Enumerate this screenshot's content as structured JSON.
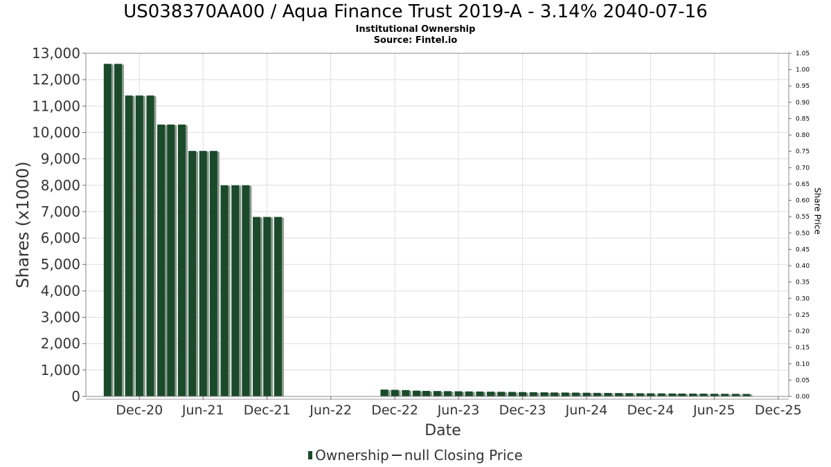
{
  "header": {
    "title": "US038370AA00 / Aqua Finance Trust 2019-A - 3.14% 2040-07-16",
    "subtitle1": "Institutional Ownership",
    "subtitle2": "Source: Fintel.io"
  },
  "legend": {
    "ownership_label": "Ownership",
    "price_label": "null Closing Price"
  },
  "colors": {
    "bar": "#1a4a2a",
    "bar_shadow": "#8a9a8e",
    "grid": "#dddddd",
    "plot_border": "#888888",
    "axis_text": "#333333"
  },
  "chart_data": {
    "type": "bar",
    "title": "US038370AA00 / Aqua Finance Trust 2019-A - 3.14% 2040-07-16",
    "xlabel": "Date",
    "ylabel": "Shares (x1000)",
    "y2label": "Share Price",
    "ylim": [
      0,
      13000
    ],
    "y2lim": [
      0,
      1.05
    ],
    "x_range": [
      "2020-07-01",
      "2025-12-31"
    ],
    "grid": true,
    "legend_position": "bottom",
    "yticks": [
      "0",
      "1,000",
      "2,000",
      "3,000",
      "4,000",
      "5,000",
      "6,000",
      "7,000",
      "8,000",
      "9,000",
      "10,000",
      "11,000",
      "12,000",
      "13,000"
    ],
    "y2ticks": [
      "0.00",
      "0.05",
      "0.10",
      "0.15",
      "0.20",
      "0.25",
      "0.30",
      "0.35",
      "0.40",
      "0.45",
      "0.50",
      "0.55",
      "0.60",
      "0.65",
      "0.70",
      "0.75",
      "0.80",
      "0.85",
      "0.90",
      "0.95",
      "1.00",
      "1.05"
    ],
    "xticks": [
      {
        "label": "Dec-20",
        "date": "2020-12-01"
      },
      {
        "label": "Jun-21",
        "date": "2021-06-01"
      },
      {
        "label": "Dec-21",
        "date": "2021-12-01"
      },
      {
        "label": "Jun-22",
        "date": "2022-06-01"
      },
      {
        "label": "Dec-22",
        "date": "2022-12-01"
      },
      {
        "label": "Jun-23",
        "date": "2023-06-01"
      },
      {
        "label": "Dec-23",
        "date": "2023-12-01"
      },
      {
        "label": "Jun-24",
        "date": "2024-06-01"
      },
      {
        "label": "Dec-24",
        "date": "2024-12-01"
      },
      {
        "label": "Jun-25",
        "date": "2025-06-01"
      },
      {
        "label": "Dec-25",
        "date": "2025-12-01"
      }
    ],
    "series": [
      {
        "name": "Ownership",
        "points": [
          {
            "date": "2020-09-01",
            "value": 12600
          },
          {
            "date": "2020-10-01",
            "value": 12600
          },
          {
            "date": "2020-11-01",
            "value": 11400
          },
          {
            "date": "2020-12-01",
            "value": 11400
          },
          {
            "date": "2021-01-01",
            "value": 11400
          },
          {
            "date": "2021-02-01",
            "value": 10300
          },
          {
            "date": "2021-03-01",
            "value": 10300
          },
          {
            "date": "2021-04-01",
            "value": 10300
          },
          {
            "date": "2021-05-01",
            "value": 9300
          },
          {
            "date": "2021-06-01",
            "value": 9300
          },
          {
            "date": "2021-07-01",
            "value": 9300
          },
          {
            "date": "2021-08-01",
            "value": 8000
          },
          {
            "date": "2021-09-01",
            "value": 8000
          },
          {
            "date": "2021-10-01",
            "value": 8000
          },
          {
            "date": "2021-11-01",
            "value": 6800
          },
          {
            "date": "2021-12-01",
            "value": 6800
          },
          {
            "date": "2022-01-01",
            "value": 6800
          },
          {
            "date": "2022-11-01",
            "value": 260
          },
          {
            "date": "2022-12-01",
            "value": 250
          },
          {
            "date": "2023-01-01",
            "value": 240
          },
          {
            "date": "2023-02-01",
            "value": 220
          },
          {
            "date": "2023-03-01",
            "value": 210
          },
          {
            "date": "2023-04-01",
            "value": 205
          },
          {
            "date": "2023-05-01",
            "value": 200
          },
          {
            "date": "2023-06-01",
            "value": 195
          },
          {
            "date": "2023-07-01",
            "value": 190
          },
          {
            "date": "2023-08-01",
            "value": 185
          },
          {
            "date": "2023-09-01",
            "value": 180
          },
          {
            "date": "2023-10-01",
            "value": 175
          },
          {
            "date": "2023-11-01",
            "value": 170
          },
          {
            "date": "2023-12-01",
            "value": 165
          },
          {
            "date": "2024-01-01",
            "value": 160
          },
          {
            "date": "2024-02-01",
            "value": 155
          },
          {
            "date": "2024-03-01",
            "value": 150
          },
          {
            "date": "2024-04-01",
            "value": 148
          },
          {
            "date": "2024-05-01",
            "value": 145
          },
          {
            "date": "2024-06-01",
            "value": 140
          },
          {
            "date": "2024-07-01",
            "value": 135
          },
          {
            "date": "2024-08-01",
            "value": 132
          },
          {
            "date": "2024-09-01",
            "value": 128
          },
          {
            "date": "2024-10-01",
            "value": 125
          },
          {
            "date": "2024-11-01",
            "value": 120
          },
          {
            "date": "2024-12-01",
            "value": 118
          },
          {
            "date": "2025-01-01",
            "value": 115
          },
          {
            "date": "2025-02-01",
            "value": 112
          },
          {
            "date": "2025-03-01",
            "value": 110
          },
          {
            "date": "2025-04-01",
            "value": 108
          },
          {
            "date": "2025-05-01",
            "value": 105
          },
          {
            "date": "2025-06-01",
            "value": 102
          },
          {
            "date": "2025-07-01",
            "value": 100
          },
          {
            "date": "2025-08-01",
            "value": 98
          },
          {
            "date": "2025-09-01",
            "value": 95
          }
        ]
      }
    ]
  }
}
